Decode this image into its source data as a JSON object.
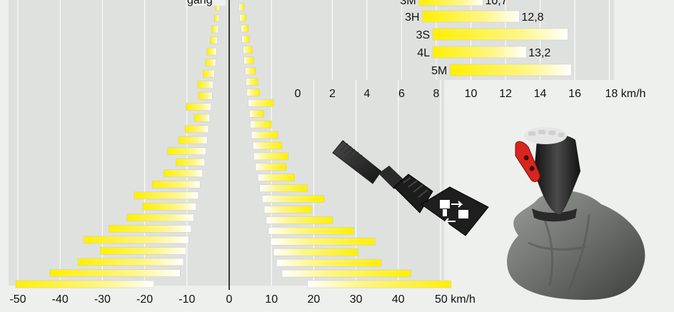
{
  "colors": {
    "background": "#eef0ee",
    "plot_background": "#dfe1df",
    "grid": "#ffffff",
    "bar_bright": "#fff000",
    "bar_white": "#ffffff",
    "axis": "#000000"
  },
  "heading_fragment": "gang",
  "icons": [
    "joystick-lever-icon",
    "forward-reverse-tractor-icon",
    "gear-shift-knob-icon"
  ],
  "chart_data": [
    {
      "type": "bar",
      "orientation": "horizontal",
      "xlim": [
        -50,
        50
      ],
      "xticks": [
        "-50",
        "-40",
        "-30",
        "-20",
        "-10",
        "0",
        "10",
        "20",
        "30",
        "40",
        "50 km/h"
      ],
      "grid": true,
      "forward_ranges": [
        [
          2.3,
          3.6
        ],
        [
          2.5,
          4.0
        ],
        [
          2.8,
          4.5
        ],
        [
          3.0,
          4.8
        ],
        [
          3.3,
          5.5
        ],
        [
          3.5,
          5.8
        ],
        [
          3.8,
          6.2
        ],
        [
          4.0,
          6.8
        ],
        [
          4.2,
          7.2
        ],
        [
          4.5,
          10.5
        ],
        [
          4.8,
          8.2
        ],
        [
          5.0,
          10.0
        ],
        [
          5.3,
          11.5
        ],
        [
          5.6,
          12.5
        ],
        [
          5.8,
          14.0
        ],
        [
          6.2,
          13.5
        ],
        [
          6.8,
          15.5
        ],
        [
          7.2,
          18.5
        ],
        [
          7.8,
          22.5
        ],
        [
          8.3,
          19.5
        ],
        [
          8.8,
          24.5
        ],
        [
          9.3,
          29.5
        ],
        [
          9.8,
          34.5
        ],
        [
          10.5,
          30.5
        ],
        [
          11.2,
          36.0
        ],
        [
          12.5,
          43.0
        ],
        [
          18.5,
          52.5
        ]
      ],
      "reverse_ranges": [
        [
          -2.3,
          -3.3
        ],
        [
          -2.4,
          -3.5
        ],
        [
          -2.6,
          -4.2
        ],
        [
          -2.8,
          -4.5
        ],
        [
          -3.0,
          -5.3
        ],
        [
          -3.2,
          -5.6
        ],
        [
          -3.5,
          -6.2
        ],
        [
          -3.8,
          -7.5
        ],
        [
          -4.0,
          -7.3
        ],
        [
          -4.3,
          -10.2
        ],
        [
          -4.6,
          -8.3
        ],
        [
          -4.9,
          -10.5
        ],
        [
          -5.2,
          -12.0
        ],
        [
          -5.5,
          -14.6
        ],
        [
          -5.8,
          -12.6
        ],
        [
          -6.3,
          -15.5
        ],
        [
          -6.9,
          -18.2
        ],
        [
          -7.3,
          -22.5
        ],
        [
          -7.8,
          -20.5
        ],
        [
          -8.4,
          -24.2
        ],
        [
          -9.0,
          -28.5
        ],
        [
          -9.6,
          -34.5
        ],
        [
          -10.2,
          -30.5
        ],
        [
          -10.8,
          -35.8
        ],
        [
          -11.6,
          -42.5
        ],
        [
          -17.8,
          -50.5
        ]
      ]
    },
    {
      "type": "bar",
      "orientation": "horizontal",
      "categories": [
        "3M",
        "3H",
        "3S",
        "4L",
        "5M"
      ],
      "ranges": [
        [
          7.0,
          10.7
        ],
        [
          7.2,
          12.8
        ],
        [
          7.8,
          15.6
        ],
        [
          7.8,
          13.2
        ],
        [
          8.8,
          15.8
        ]
      ],
      "value_labels": [
        "10,7",
        "12,8",
        "",
        "13,2",
        ""
      ],
      "xlim": [
        0,
        18
      ],
      "xticks": [
        "0",
        "2",
        "4",
        "6",
        "8",
        "10",
        "12",
        "14",
        "16",
        "18 km/h"
      ],
      "grid": true
    }
  ]
}
